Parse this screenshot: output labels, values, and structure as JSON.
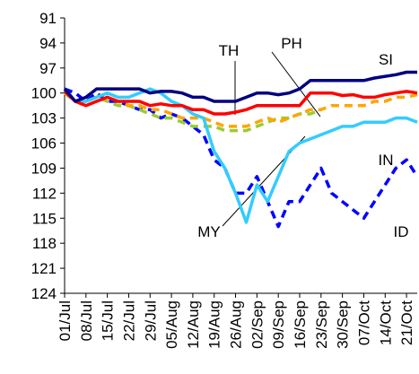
{
  "chart_data": {
    "type": "line",
    "y_inverted": true,
    "categories": [
      "01/Jul",
      null,
      "08/Jul",
      null,
      "15/Jul",
      null,
      "22/Jul",
      null,
      "29/Jul",
      null,
      "05/Aug",
      null,
      "12/Aug",
      null,
      "19/Aug",
      null,
      "26/Aug",
      null,
      "02/Sep",
      null,
      "09/Sep",
      null,
      "16/Sep",
      null,
      "23/Sep",
      null,
      "30/Sep",
      null,
      "07/Oct",
      null,
      "14/Oct",
      null,
      "21/Oct",
      null
    ],
    "ylim": [
      91,
      124
    ],
    "yticks": [
      91,
      94,
      97,
      100,
      103,
      106,
      109,
      112,
      115,
      118,
      121,
      124
    ],
    "series": [
      {
        "name": "ID",
        "color": "#0000ff",
        "style": "dashed",
        "values": [
          99.5,
          100,
          101,
          100,
          101,
          101,
          101.5,
          102,
          102,
          103,
          102.5,
          103,
          104,
          105,
          108,
          109,
          112,
          112,
          110,
          113,
          116,
          113,
          113,
          111,
          109,
          112,
          113,
          114,
          115,
          113,
          111,
          109,
          108,
          110
        ]
      },
      {
        "name": "IN",
        "color": "#99cc33",
        "style": "dashed",
        "values": [
          100,
          101,
          101,
          100.5,
          101,
          101.5,
          101.5,
          102,
          102.5,
          103,
          103,
          103.5,
          104,
          104,
          104,
          104.5,
          104.5,
          104.5,
          104,
          103.5,
          103,
          103,
          102.5,
          102.5,
          102,
          null,
          null,
          null,
          null,
          null,
          null,
          null,
          null,
          null
        ]
      },
      {
        "name": "PH",
        "color": "#ffa500",
        "style": "dashed",
        "values": [
          100,
          101,
          101.5,
          101,
          100.5,
          101,
          101.5,
          101.5,
          102,
          102,
          102.5,
          103,
          103,
          103,
          103.5,
          104,
          104,
          104,
          103.5,
          103,
          103.5,
          103,
          102.5,
          102,
          102,
          101.5,
          101.5,
          101.5,
          101.5,
          101,
          101,
          100.5,
          100.5,
          100.2
        ]
      },
      {
        "name": "MY",
        "color": "#33ccff",
        "style": "solid",
        "values": [
          99.5,
          101,
          101,
          100.5,
          100,
          100.5,
          100.5,
          100,
          99.5,
          100,
          101,
          101.5,
          102.5,
          103,
          107,
          109,
          112,
          115.5,
          111,
          113,
          110,
          107,
          106,
          105.5,
          105,
          104.5,
          104,
          104,
          103.5,
          103.5,
          103.5,
          103,
          103,
          103.5
        ]
      },
      {
        "name": "TH",
        "color": "#ff0000",
        "style": "solid",
        "values": [
          99.8,
          101,
          101.5,
          101,
          100.5,
          101,
          101,
          101,
          101.5,
          101.3,
          101.5,
          101.5,
          102,
          102,
          102.5,
          102.5,
          102.3,
          102,
          101.5,
          101.5,
          101.5,
          101.5,
          101.5,
          100,
          100,
          100,
          100.3,
          100.2,
          100.5,
          100.5,
          100.2,
          100,
          99.8,
          100
        ]
      },
      {
        "name": "SI",
        "color": "#000080",
        "style": "solid",
        "values": [
          99.5,
          101,
          100.5,
          99.5,
          99.5,
          99.5,
          99.5,
          99.5,
          100,
          99.8,
          99.8,
          100,
          100.5,
          100.5,
          101,
          101,
          101,
          100.5,
          100,
          100,
          100.2,
          100,
          99.5,
          98.5,
          98.5,
          98.5,
          98.5,
          98.5,
          98.5,
          98.2,
          98,
          97.8,
          97.5,
          97.5
        ]
      }
    ]
  }
}
